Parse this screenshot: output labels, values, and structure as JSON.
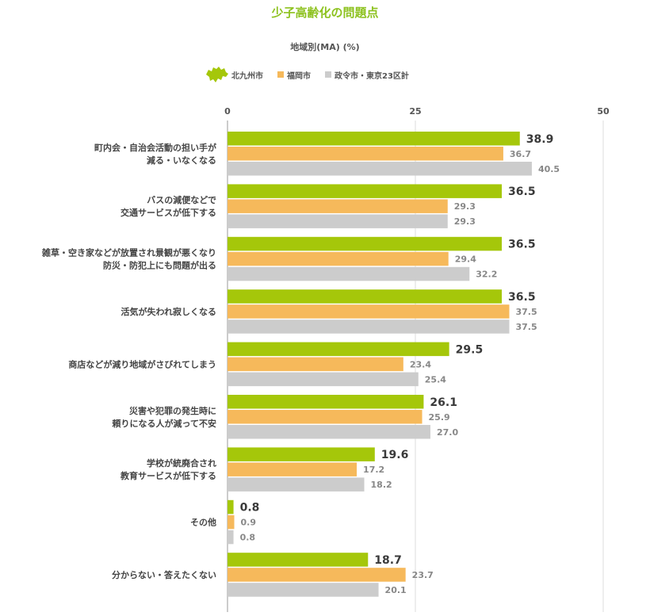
{
  "chart_data": {
    "type": "bar",
    "orientation": "horizontal",
    "title": "少子高齢化の問題点",
    "subtitle": "地域別(MA) (%)",
    "xlim": [
      0,
      50
    ],
    "ticks": [
      0,
      25,
      50
    ],
    "grid": true,
    "categories": [
      [
        "町内会・自治会活動の担い手が",
        "減る・いなくなる"
      ],
      [
        "バスの減便などで",
        "交通サービスが低下する"
      ],
      [
        "雑草・空き家などが放置され景観が悪くなり",
        "防災・防犯上にも問題が出る"
      ],
      [
        "活気が失われ寂しくなる"
      ],
      [
        "商店などが減り地域がさびれてしまう"
      ],
      [
        "災害や犯罪の発生時に",
        "頼りになる人が減って不安"
      ],
      [
        "学校が統廃合され",
        "教育サービスが低下する"
      ],
      [
        "その他"
      ],
      [
        "分からない・答えたくない"
      ]
    ],
    "series": [
      {
        "name": "北九州市",
        "color": "#a5c70a",
        "values": [
          38.9,
          36.5,
          36.5,
          36.5,
          29.5,
          26.1,
          19.6,
          0.8,
          18.7
        ],
        "labels": [
          "38.9",
          "36.5",
          "36.5",
          "36.5",
          "29.5",
          "26.1",
          "19.6",
          "0.8",
          "18.7"
        ]
      },
      {
        "name": "福岡市",
        "color": "#f6b95b",
        "values": [
          36.7,
          29.3,
          29.4,
          37.5,
          23.4,
          25.9,
          17.2,
          0.9,
          23.7
        ],
        "labels": [
          "36.7",
          "29.3",
          "29.4",
          "37.5",
          "23.4",
          "25.9",
          "17.2",
          "0.9",
          "23.7"
        ]
      },
      {
        "name": "政令市・東京23区計",
        "color": "#cccccc",
        "values": [
          40.5,
          29.3,
          32.2,
          37.5,
          25.4,
          27.0,
          18.2,
          0.8,
          20.1
        ],
        "labels": [
          "40.5",
          "29.3",
          "32.2",
          "37.5",
          "25.4",
          "27.0",
          "18.2",
          "0.8",
          "20.1"
        ]
      }
    ]
  }
}
